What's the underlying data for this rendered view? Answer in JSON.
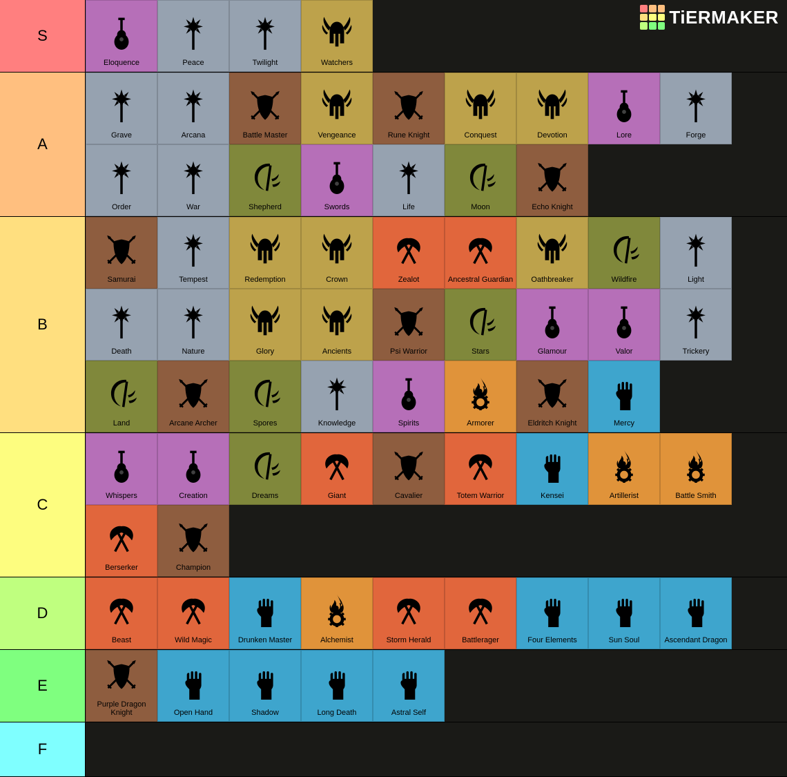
{
  "brand": {
    "name": "TiERMAKER"
  },
  "logo_colors": [
    "#ff7f7f",
    "#ffbf7f",
    "#ffbf7f",
    "#ffdf7f",
    "#ffff7f",
    "#ffff7f",
    "#bfff7f",
    "#7fff7f",
    "#7fff7f"
  ],
  "class_styles": {
    "bard": {
      "bg": "#b66fb8",
      "icon": "lute"
    },
    "cleric": {
      "bg": "#96a2b0",
      "icon": "mace"
    },
    "paladin": {
      "bg": "#bda24b",
      "icon": "winghelm"
    },
    "fighter": {
      "bg": "#8e5d3f",
      "icon": "shieldswords"
    },
    "druid": {
      "bg": "#80883b",
      "icon": "sickle"
    },
    "barbarian": {
      "bg": "#e1663c",
      "icon": "axes"
    },
    "monk": {
      "bg": "#3ea5cd",
      "icon": "fist"
    },
    "artificer": {
      "bg": "#e0933a",
      "icon": "firegear"
    }
  },
  "icon_fill": "#000000",
  "tiers": [
    {
      "id": "S",
      "label": "S",
      "color": "#ff7f7f",
      "min_height": 104,
      "items": [
        {
          "label": "Eloquence",
          "class": "bard"
        },
        {
          "label": "Peace",
          "class": "cleric"
        },
        {
          "label": "Twilight",
          "class": "cleric"
        },
        {
          "label": "Watchers",
          "class": "paladin"
        }
      ]
    },
    {
      "id": "A",
      "label": "A",
      "color": "#ffbf7f",
      "min_height": 208,
      "items": [
        {
          "label": "Grave",
          "class": "cleric"
        },
        {
          "label": "Arcana",
          "class": "cleric"
        },
        {
          "label": "Battle Master",
          "class": "fighter"
        },
        {
          "label": "Vengeance",
          "class": "paladin"
        },
        {
          "label": "Rune Knight",
          "class": "fighter"
        },
        {
          "label": "Conquest",
          "class": "paladin"
        },
        {
          "label": "Devotion",
          "class": "paladin"
        },
        {
          "label": "Lore",
          "class": "bard"
        },
        {
          "label": "Forge",
          "class": "cleric"
        },
        {
          "label": "Order",
          "class": "cleric"
        },
        {
          "label": "War",
          "class": "cleric"
        },
        {
          "label": "Shepherd",
          "class": "druid"
        },
        {
          "label": "Swords",
          "class": "bard"
        },
        {
          "label": "Life",
          "class": "cleric"
        },
        {
          "label": "Moon",
          "class": "druid"
        },
        {
          "label": "Echo Knight",
          "class": "fighter"
        }
      ]
    },
    {
      "id": "B",
      "label": "B",
      "color": "#ffdf7f",
      "min_height": 312,
      "items": [
        {
          "label": "Samurai",
          "class": "fighter"
        },
        {
          "label": "Tempest",
          "class": "cleric"
        },
        {
          "label": "Redemption",
          "class": "paladin"
        },
        {
          "label": "Crown",
          "class": "paladin"
        },
        {
          "label": "Zealot",
          "class": "barbarian"
        },
        {
          "label": "Ancestral Guardian",
          "class": "barbarian"
        },
        {
          "label": "Oathbreaker",
          "class": "paladin"
        },
        {
          "label": "Wildfire",
          "class": "druid"
        },
        {
          "label": "Light",
          "class": "cleric"
        },
        {
          "label": "Death",
          "class": "cleric"
        },
        {
          "label": "Nature",
          "class": "cleric"
        },
        {
          "label": "Glory",
          "class": "paladin"
        },
        {
          "label": "Ancients",
          "class": "paladin"
        },
        {
          "label": "Psi Warrior",
          "class": "fighter"
        },
        {
          "label": "Stars",
          "class": "druid"
        },
        {
          "label": "Glamour",
          "class": "bard"
        },
        {
          "label": "Valor",
          "class": "bard"
        },
        {
          "label": "Trickery",
          "class": "cleric"
        },
        {
          "label": "Land",
          "class": "druid"
        },
        {
          "label": "Arcane Archer",
          "class": "fighter"
        },
        {
          "label": "Spores",
          "class": "druid"
        },
        {
          "label": "Knowledge",
          "class": "cleric"
        },
        {
          "label": "Spirits",
          "class": "bard"
        },
        {
          "label": "Armorer",
          "class": "artificer"
        },
        {
          "label": "Eldritch Knight",
          "class": "fighter"
        },
        {
          "label": "Mercy",
          "class": "monk"
        }
      ]
    },
    {
      "id": "C",
      "label": "C",
      "color": "#fdfd7f",
      "min_height": 208,
      "items": [
        {
          "label": "Whispers",
          "class": "bard"
        },
        {
          "label": "Creation",
          "class": "bard"
        },
        {
          "label": "Dreams",
          "class": "druid"
        },
        {
          "label": "Giant",
          "class": "barbarian"
        },
        {
          "label": "Cavalier",
          "class": "fighter"
        },
        {
          "label": "Totem Warrior",
          "class": "barbarian"
        },
        {
          "label": "Kensei",
          "class": "monk"
        },
        {
          "label": "Artillerist",
          "class": "artificer"
        },
        {
          "label": "Battle Smith",
          "class": "artificer"
        },
        {
          "label": "Berserker",
          "class": "barbarian"
        },
        {
          "label": "Champion",
          "class": "fighter"
        }
      ]
    },
    {
      "id": "D",
      "label": "D",
      "color": "#bfff7f",
      "min_height": 104,
      "items": [
        {
          "label": "Beast",
          "class": "barbarian"
        },
        {
          "label": "Wild Magic",
          "class": "barbarian"
        },
        {
          "label": "Drunken Master",
          "class": "monk"
        },
        {
          "label": "Alchemist",
          "class": "artificer"
        },
        {
          "label": "Storm Herald",
          "class": "barbarian"
        },
        {
          "label": "Battlerager",
          "class": "barbarian"
        },
        {
          "label": "Four Elements",
          "class": "monk"
        },
        {
          "label": "Sun Soul",
          "class": "monk"
        },
        {
          "label": "Ascendant Dragon",
          "class": "monk"
        }
      ]
    },
    {
      "id": "E",
      "label": "E",
      "color": "#7fff7f",
      "min_height": 104,
      "items": [
        {
          "label": "Purple Dragon Knight",
          "class": "fighter"
        },
        {
          "label": "Open Hand",
          "class": "monk"
        },
        {
          "label": "Shadow",
          "class": "monk"
        },
        {
          "label": "Long Death",
          "class": "monk"
        },
        {
          "label": "Astral Self",
          "class": "monk"
        }
      ]
    },
    {
      "id": "F",
      "label": "F",
      "color": "#7fffff",
      "min_height": 78,
      "items": []
    }
  ]
}
